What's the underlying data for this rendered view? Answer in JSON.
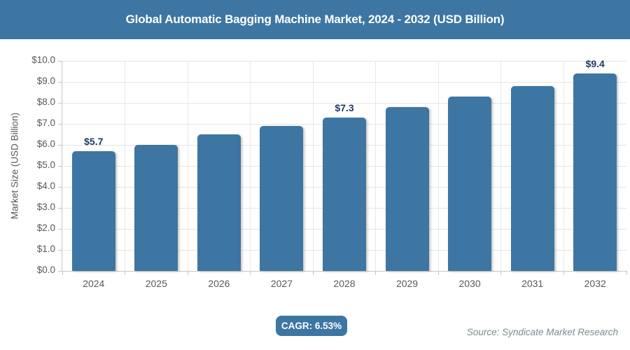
{
  "chart_data": {
    "type": "bar",
    "title": "Global Automatic Bagging Machine Market, 2024 - 2032 (USD Billion)",
    "categories": [
      "2024",
      "2025",
      "2026",
      "2027",
      "2028",
      "2029",
      "2030",
      "2031",
      "2032"
    ],
    "values": [
      5.7,
      6.0,
      6.5,
      6.9,
      7.3,
      7.8,
      8.3,
      8.8,
      9.4
    ],
    "data_labels": [
      "$5.7",
      null,
      null,
      null,
      "$7.3",
      null,
      null,
      null,
      "$9.4"
    ],
    "xlabel": "",
    "ylabel": "Market Size (USD Billion)",
    "ylim": [
      0,
      10
    ],
    "ytick_step": 1,
    "ytick_labels": [
      "$0.0",
      "$1.0",
      "$2.0",
      "$3.0",
      "$4.0",
      "$5.0",
      "$6.0",
      "$7.0",
      "$8.0",
      "$9.0",
      "$10.0"
    ],
    "grid": true,
    "legend": "none",
    "bar_color": "#3d76a2"
  },
  "footer": {
    "cagr_label": "CAGR: 6.53%",
    "source": "Source: Syndicate Market Research"
  },
  "colors": {
    "accent": "#3d76a2",
    "bar": "#3d76a2",
    "title_text": "#ffffff",
    "data_label_text": "#1f3a60",
    "axis_text": "#595959",
    "gridline": "#e4e4e4",
    "axis_line": "#c6c6c6",
    "source_text": "#7d8a8f"
  }
}
